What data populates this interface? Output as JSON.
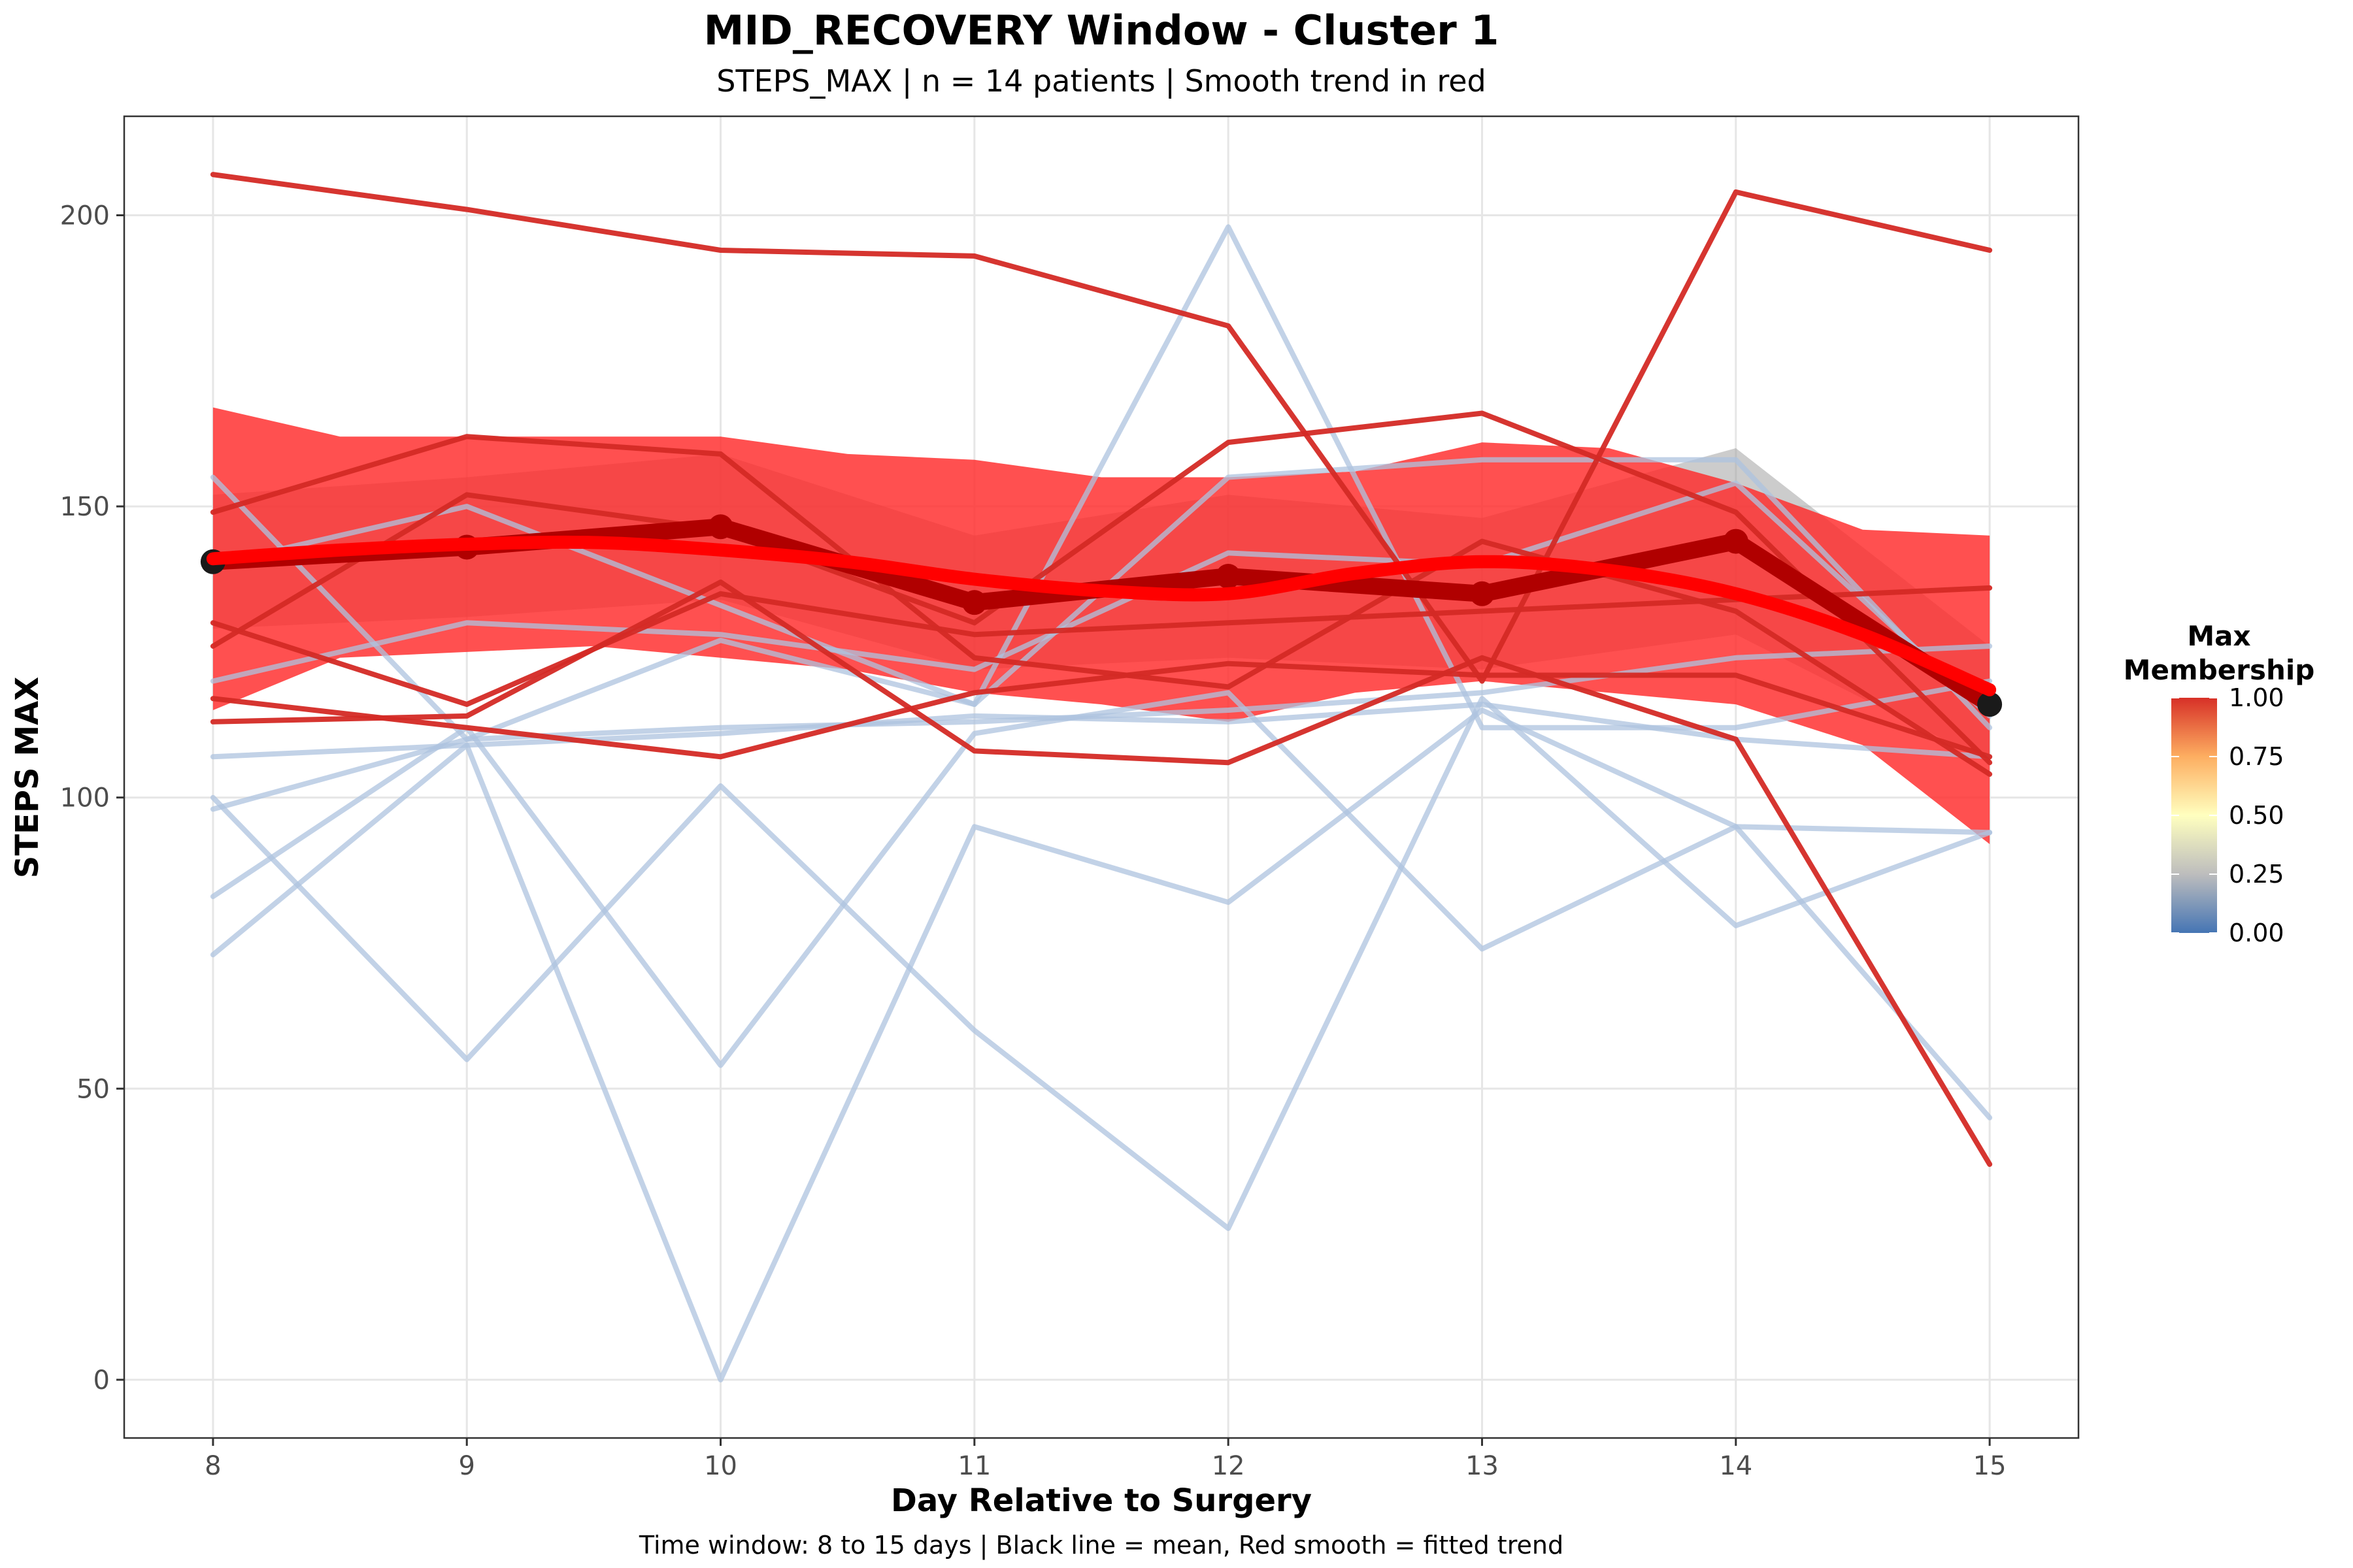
{
  "chart_data": {
    "type": "line",
    "title": "MID_RECOVERY Window - Cluster 1",
    "subtitle": "STEPS_MAX | n = 14 patients | Smooth trend in red",
    "caption": "Time window: 8 to 15 days | Black line = mean, Red smooth = fitted trend",
    "xlabel": "Day Relative to Surgery",
    "ylabel": "STEPS MAX",
    "x": [
      8,
      9,
      10,
      11,
      12,
      13,
      14,
      15
    ],
    "xlim": [
      7.65,
      15.35
    ],
    "ylim": [
      -10,
      217
    ],
    "x_ticks": [
      8,
      9,
      10,
      11,
      12,
      13,
      14,
      15
    ],
    "y_ticks": [
      0,
      50,
      100,
      150,
      200
    ],
    "grid": true,
    "legend": {
      "title_line1": "Max",
      "title_line2": "Membership",
      "type": "colorbar",
      "placement": "right",
      "ticks": [
        "1.00",
        "0.75",
        "0.50",
        "0.25",
        "0.00"
      ],
      "gradient_colors": [
        "#4575b4",
        "#bdbdbd",
        "#ffffbf",
        "#fdae61",
        "#d73027"
      ]
    },
    "colors": {
      "high_membership": "#d42a25",
      "low_membership": "#aec3df",
      "mean_line": "#b00000",
      "mean_points": "#1a1a1a",
      "smooth": "#ff0000",
      "ribbon": "#ff2a2a",
      "mean_se": "#999999"
    },
    "series": [
      {
        "membership": "high",
        "values": [
          207,
          201,
          194,
          193,
          181,
          120,
          204,
          194
        ]
      },
      {
        "membership": "high",
        "values": [
          149,
          162,
          159,
          124,
          119,
          144,
          132,
          104
        ]
      },
      {
        "membership": "high",
        "values": [
          126,
          152,
          146,
          130,
          161,
          166,
          149,
          106
        ]
      },
      {
        "membership": "high",
        "values": [
          117,
          112,
          107,
          118,
          123,
          121,
          121,
          107
        ]
      },
      {
        "membership": "high",
        "values": [
          113,
          114,
          137,
          108,
          106,
          124,
          110,
          37
        ]
      },
      {
        "membership": "high",
        "values": [
          130,
          116,
          135,
          128,
          130,
          132,
          134,
          136
        ]
      },
      {
        "membership": "low",
        "values": [
          155,
          110,
          127,
          116,
          198,
          112,
          112,
          120
        ]
      },
      {
        "membership": "low",
        "values": [
          107,
          109,
          111,
          114,
          113,
          116,
          110,
          107
        ]
      },
      {
        "membership": "low",
        "values": [
          98,
          110,
          112,
          113,
          115,
          118,
          124,
          126
        ]
      },
      {
        "membership": "low",
        "values": [
          100,
          55,
          102,
          60,
          26,
          117,
          78,
          94
        ]
      },
      {
        "membership": "low",
        "values": [
          83,
          112,
          54,
          111,
          118,
          74,
          95,
          45
        ]
      },
      {
        "membership": "low",
        "values": [
          73,
          109,
          0,
          95,
          82,
          115,
          95,
          94
        ]
      },
      {
        "membership": "low",
        "values": [
          140,
          150,
          133,
          116,
          155,
          158,
          158,
          112
        ]
      },
      {
        "membership": "low",
        "values": [
          120,
          130,
          128,
          122,
          142,
          140,
          154,
          114
        ]
      }
    ],
    "mean": [
      140.5,
      143,
      146.5,
      133.5,
      138,
      135,
      144,
      116
    ],
    "mean_se_upper": [
      152,
      155,
      159,
      145,
      152,
      148,
      160,
      126
    ],
    "mean_se_lower": [
      129,
      131,
      134,
      122,
      124,
      122,
      128,
      106
    ],
    "smooth": {
      "x": [
        8,
        8.5,
        9,
        9.5,
        10,
        10.5,
        11,
        11.5,
        12,
        12.5,
        13,
        13.5,
        14,
        14.5,
        15
      ],
      "fit": [
        141,
        142.5,
        143.5,
        143.8,
        142.5,
        140.5,
        137.5,
        135.5,
        135,
        138.5,
        140.5,
        139,
        135,
        128,
        118.5
      ],
      "upper": [
        167,
        162,
        162,
        162,
        162,
        159,
        158,
        155,
        155,
        156,
        161,
        160,
        154,
        146,
        145
      ],
      "lower": [
        115,
        124,
        125,
        126,
        124,
        122,
        118,
        116,
        113,
        118,
        120,
        118,
        116,
        109,
        92
      ]
    }
  }
}
